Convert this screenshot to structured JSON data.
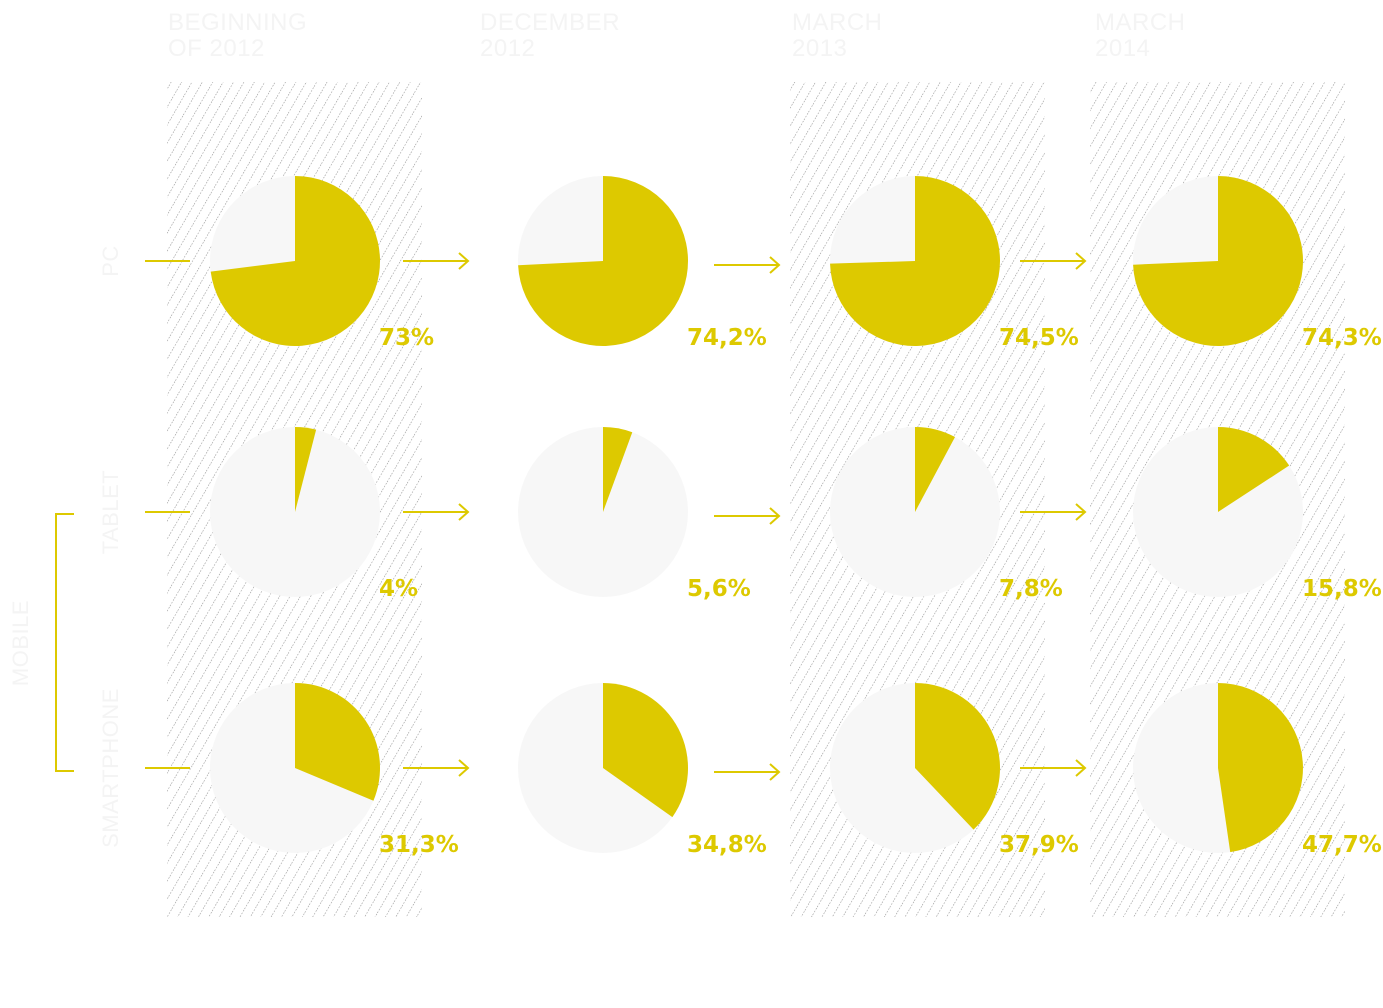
{
  "chart_data": {
    "type": "pie",
    "periods": [
      {
        "label_lines": [
          "BEGINNING",
          "OF 2012"
        ]
      },
      {
        "label_lines": [
          "DECEMBER",
          "2012"
        ]
      },
      {
        "label_lines": [
          "MARCH",
          "2013"
        ]
      },
      {
        "label_lines": [
          "MARCH",
          "2014"
        ]
      }
    ],
    "rows": [
      {
        "label": "PC",
        "values": [
          73,
          74.2,
          74.5,
          74.3
        ],
        "labels": [
          "73%",
          "74,2%",
          "74,5%",
          "74,3%"
        ]
      },
      {
        "label": "TABLET",
        "values": [
          4,
          5.6,
          7.8,
          15.8
        ],
        "labels": [
          "4%",
          "5,6%",
          "7,8%",
          "15,8%"
        ]
      },
      {
        "label": "SMARTPHONE",
        "values": [
          31.3,
          34.8,
          37.9,
          47.7
        ],
        "labels": [
          "31,3%",
          "34,8%",
          "37,9%",
          "47,7%"
        ]
      }
    ],
    "group_label": "MOBILE",
    "highlighted_periods": [
      0,
      2,
      3
    ],
    "colors": {
      "filled": "#ddc900",
      "remainder": "#f7f7f7",
      "labels": "#ddc900",
      "faint_text": "#f4f4f4"
    }
  }
}
